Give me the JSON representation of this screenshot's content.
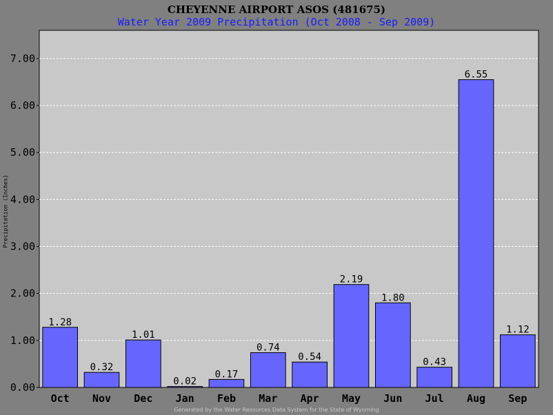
{
  "chart_data": {
    "type": "bar",
    "title": "CHEYENNE AIRPORT ASOS (481675)",
    "subtitle": "Water Year 2009 Precipitation (Oct 2008 - Sep 2009)",
    "xlabel": "",
    "ylabel": "Precipitation (Inches)",
    "categories": [
      "Oct",
      "Nov",
      "Dec",
      "Jan",
      "Feb",
      "Mar",
      "Apr",
      "May",
      "Jun",
      "Jul",
      "Aug",
      "Sep"
    ],
    "values": [
      1.28,
      0.32,
      1.01,
      0.02,
      0.17,
      0.74,
      0.54,
      2.19,
      1.8,
      0.43,
      6.55,
      1.12
    ],
    "value_labels": [
      "1.28",
      "0.32",
      "1.01",
      "0.02",
      "0.17",
      "0.74",
      "0.54",
      "2.19",
      "1.80",
      "0.43",
      "6.55",
      "1.12"
    ],
    "yticks": [
      "0.00",
      "1.00",
      "2.00",
      "3.00",
      "4.00",
      "5.00",
      "6.00",
      "7.00"
    ],
    "ylim": [
      0,
      7.6
    ],
    "grid": true,
    "legend": "none",
    "colors": {
      "bar": "#6666ff",
      "plot_bg": "#c8c8c8",
      "frame_bg": "#808080",
      "subtitle": "#1a1aff",
      "grid": "#ffffff"
    }
  },
  "footer": "Generated by the Water Resources Data System for the State of Wyoming"
}
